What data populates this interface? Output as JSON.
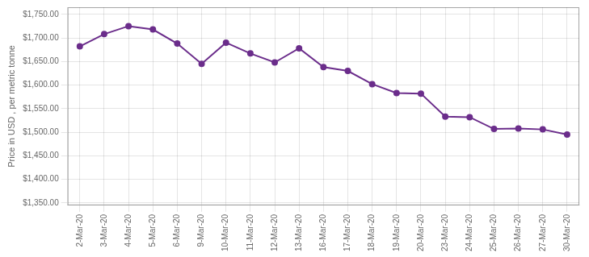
{
  "chart_data": {
    "type": "line",
    "ylabel": "Price in USD , per metric tonne",
    "categories": [
      "2-Mar-20",
      "3-Mar-20",
      "4-Mar-20",
      "5-Mar-20",
      "6-Mar-20",
      "9-Mar-20",
      "10-Mar-20",
      "11-Mar-20",
      "12-Mar-20",
      "13-Mar-20",
      "16-Mar-20",
      "17-Mar-20",
      "18-Mar-20",
      "19-Mar-20",
      "20-Mar-20",
      "23-Mar-20",
      "24-Mar-20",
      "25-Mar-20",
      "26-Mar-20",
      "27-Mar-20",
      "30-Mar-20"
    ],
    "values": [
      1682,
      1708,
      1725,
      1718,
      1688,
      1645,
      1690,
      1667,
      1648,
      1678,
      1638,
      1630,
      1602,
      1583,
      1582,
      1533,
      1532,
      1507,
      1508,
      1506,
      1495
    ],
    "color": "#6B2D8B",
    "marker": "circle",
    "ylim": [
      1345,
      1765
    ],
    "yticks": [
      {
        "value": 1350,
        "label": "$1,350.00"
      },
      {
        "value": 1400,
        "label": "$1,400.00"
      },
      {
        "value": 1450,
        "label": "$1,450.00"
      },
      {
        "value": 1500,
        "label": "$1,500.00"
      },
      {
        "value": 1550,
        "label": "$1,550.00"
      },
      {
        "value": 1600,
        "label": "$1,600.00"
      },
      {
        "value": 1650,
        "label": "$1,650.00"
      },
      {
        "value": 1700,
        "label": "$1,700.00"
      },
      {
        "value": 1750,
        "label": "$1,750.00"
      }
    ],
    "grid": true
  }
}
